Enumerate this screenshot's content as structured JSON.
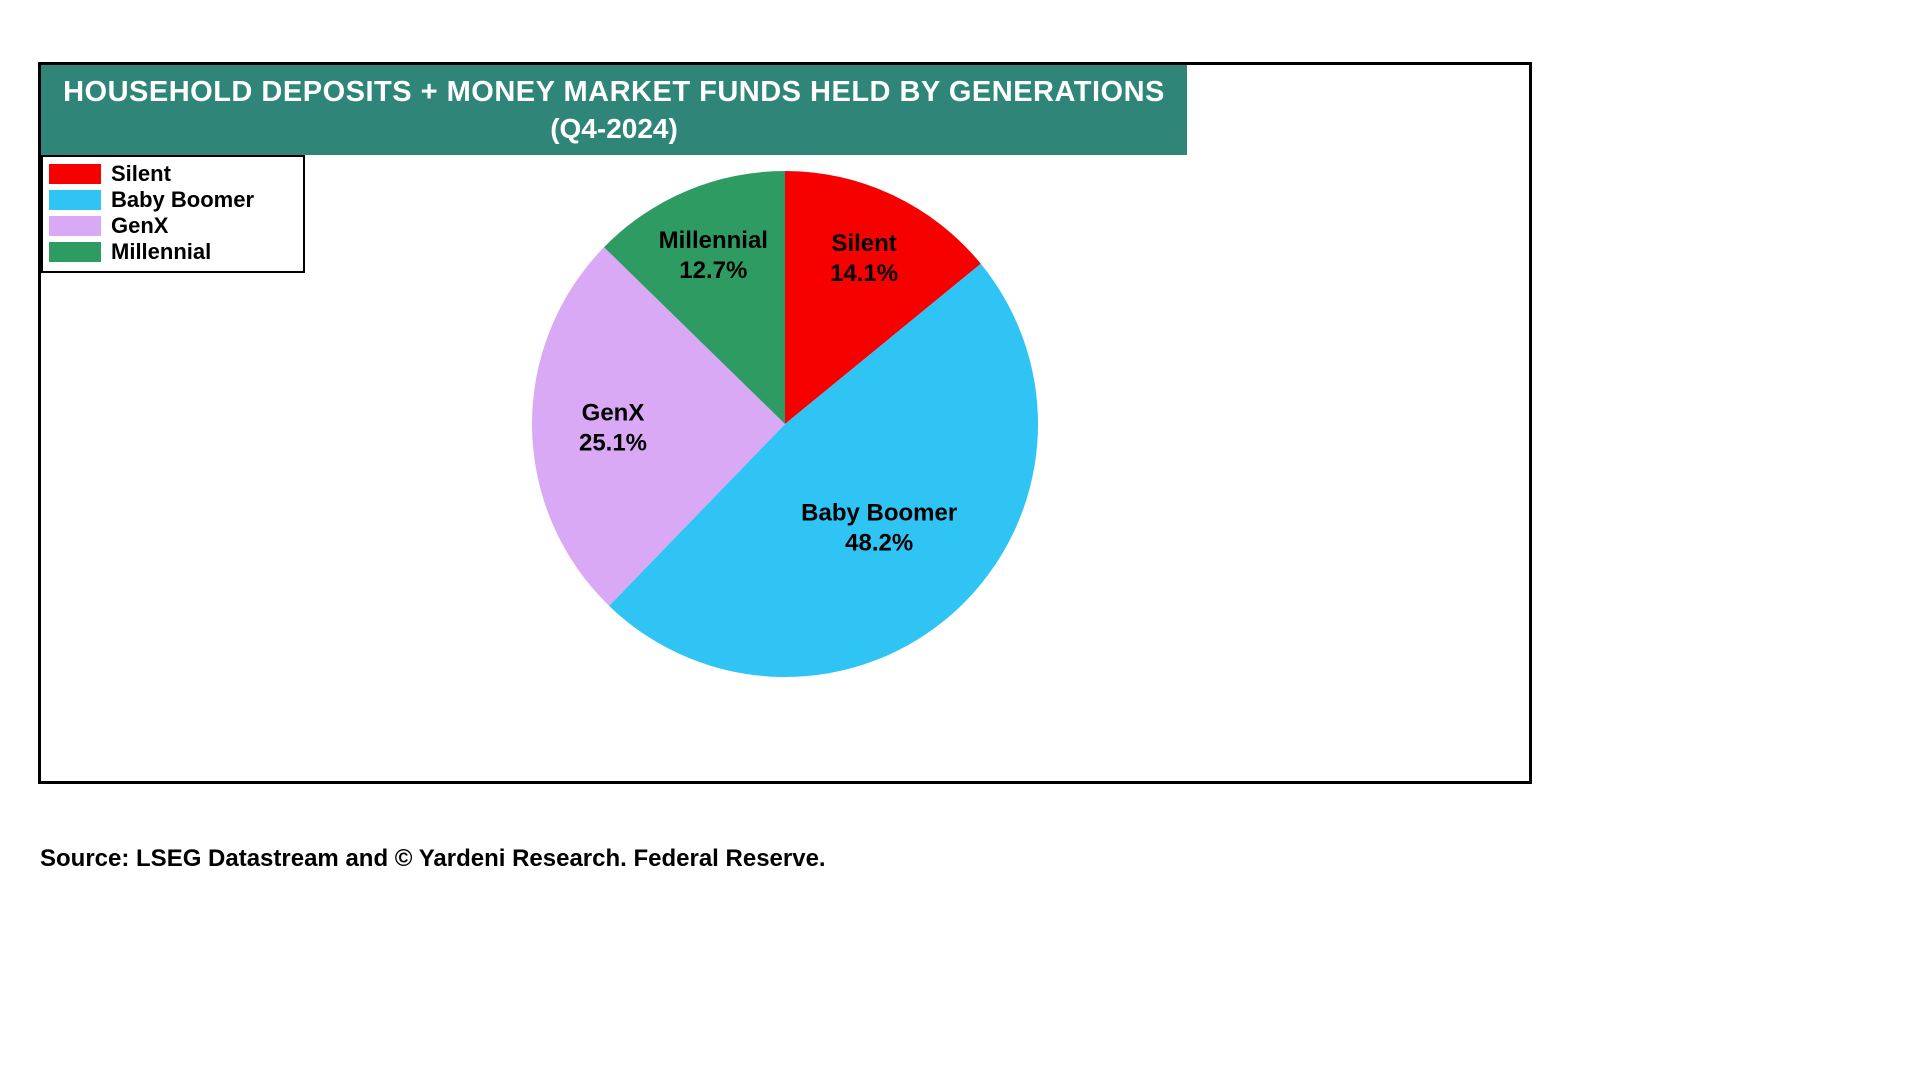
{
  "page": {
    "source_note": "Source: LSEG Datastream and © Yardeni Research. Federal Reserve."
  },
  "chart_data": {
    "type": "pie",
    "title_line1": "HOUSEHOLD DEPOSITS + MONEY MARKET FUNDS HELD BY GENERATIONS",
    "title_line2": "(Q4-2024)",
    "value_suffix": "%",
    "start_angle_deg": 0,
    "direction": "clockwise",
    "legend_position": "top-left",
    "slices": [
      {
        "label": "Silent",
        "value": 14.1,
        "color": "#f70000"
      },
      {
        "label": "Baby Boomer",
        "value": 48.2,
        "color": "#2fc4f4"
      },
      {
        "label": "GenX",
        "value": 25.1,
        "color": "#d9a9f5"
      },
      {
        "label": "Millennial",
        "value": 12.7,
        "color": "#2e9b63"
      }
    ],
    "colors": {
      "header_bg": "#2f8577",
      "header_text": "#ffffff"
    }
  }
}
